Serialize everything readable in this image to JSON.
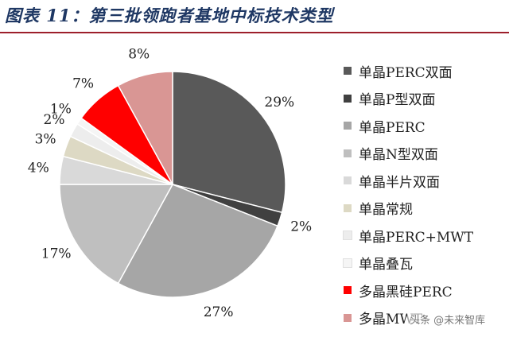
{
  "figure": {
    "title": "图表 11：第三批领跑者基地中标技术类型"
  },
  "watermark": "头条 @未来智库",
  "chart_data": {
    "type": "pie",
    "start_angle_deg": 0,
    "direction": "clockwise",
    "legend_position": "right",
    "slices": [
      {
        "label": "单晶PERC双面",
        "value": 29,
        "display": "29%",
        "color": "#595959"
      },
      {
        "label": "单晶P型双面",
        "value": 2,
        "display": "2%",
        "color": "#404040"
      },
      {
        "label": "单晶PERC",
        "value": 27,
        "display": "27%",
        "color": "#a6a6a6"
      },
      {
        "label": "单晶N型双面",
        "value": 17,
        "display": "17%",
        "color": "#bfbfbf"
      },
      {
        "label": "单晶半片双面",
        "value": 4,
        "display": "4%",
        "color": "#d9d9d9"
      },
      {
        "label": "单晶常规",
        "value": 3,
        "display": "3%",
        "color": "#ddd9c4"
      },
      {
        "label": "单晶PERC+MWT",
        "value": 2,
        "display": "2%",
        "color": "#ededed"
      },
      {
        "label": "单晶叠瓦",
        "value": 1,
        "display": "1%",
        "color": "#f5f5f5"
      },
      {
        "label": "多晶黑硅PERC",
        "value": 7,
        "display": "7%",
        "color": "#ff0000"
      },
      {
        "label": "多晶MWT",
        "value": 8,
        "display": "8%",
        "color": "#d99694"
      }
    ]
  }
}
